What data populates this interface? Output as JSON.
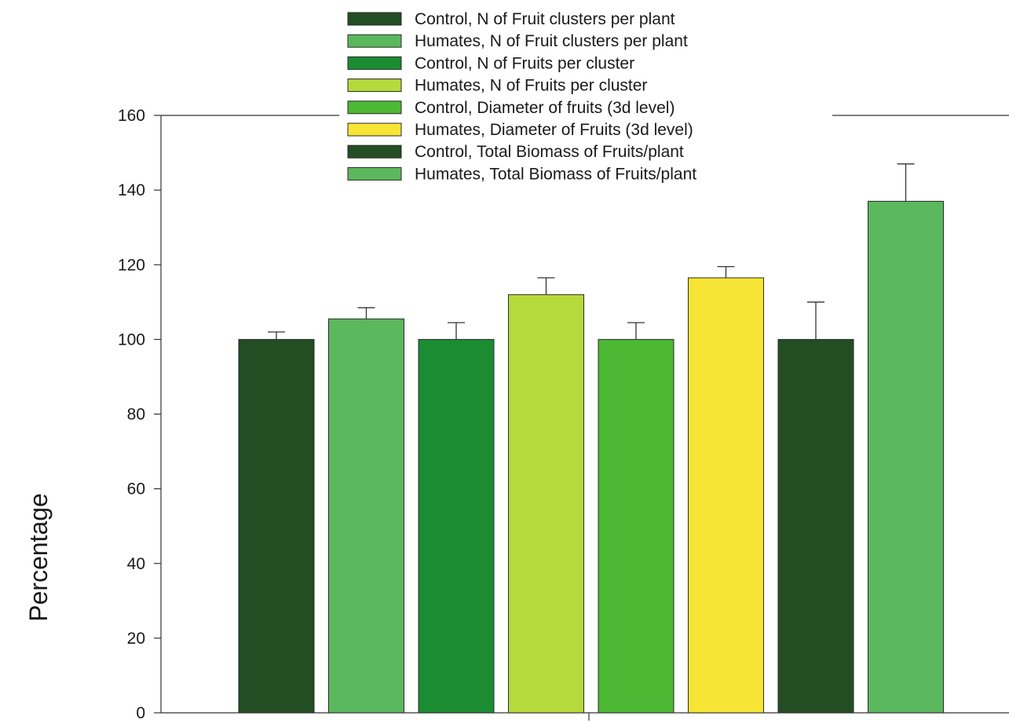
{
  "chart_data": {
    "type": "bar",
    "title": "",
    "xlabel": "",
    "ylabel": "Percentage",
    "ylim": [
      0,
      160
    ],
    "yticks": [
      0,
      20,
      40,
      60,
      80,
      100,
      120,
      140,
      160
    ],
    "grid": false,
    "legend_position": "top-center",
    "series": [
      {
        "name": "Control, N of Fruit clusters per plant",
        "value": 100,
        "error": 2,
        "color": "#234e23"
      },
      {
        "name": "Humates, N of Fruit clusters per plant",
        "value": 105.5,
        "error": 3,
        "color": "#5cb85c"
      },
      {
        "name": "Control, N of Fruits per cluster",
        "value": 100,
        "error": 4.5,
        "color": "#1b8c32"
      },
      {
        "name": "Humates, N of Fruits per cluster",
        "value": 112,
        "error": 4.5,
        "color": "#b5da3c"
      },
      {
        "name": "Control, Diameter of fruits (3d level)",
        "value": 100,
        "error": 4.5,
        "color": "#4db833"
      },
      {
        "name": "Humates, Diameter of Fruits (3d level)",
        "value": 116.5,
        "error": 3,
        "color": "#f7e535"
      },
      {
        "name": "Control, Total Biomass of Fruits/plant",
        "value": 100,
        "error": 10,
        "color": "#234e23"
      },
      {
        "name": "Humates, Total Biomass of Fruits/plant",
        "value": 137,
        "error": 10,
        "color": "#5cb85c"
      }
    ]
  }
}
